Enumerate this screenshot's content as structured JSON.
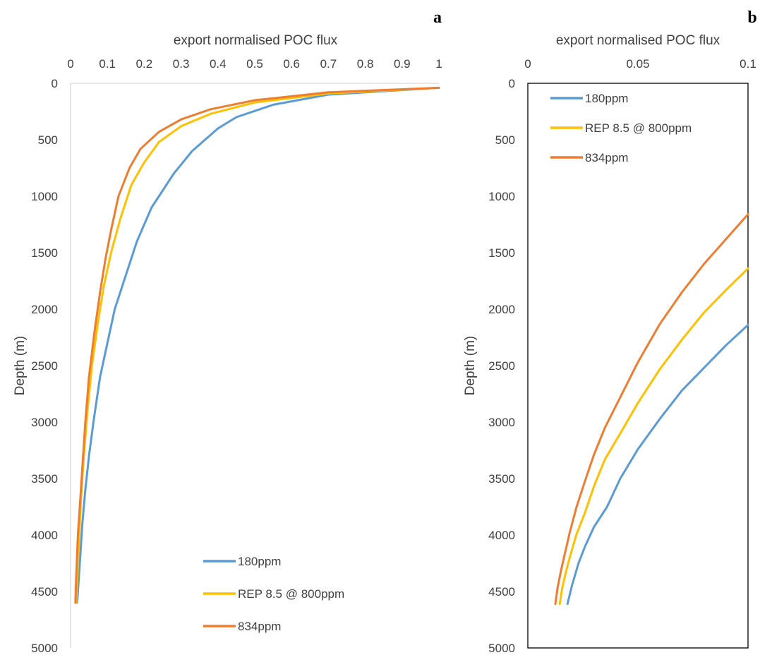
{
  "chart_data": [
    {
      "panel_label": "a",
      "type": "line",
      "title": "",
      "xlabel": "export normalised POC flux",
      "ylabel": "Depth (m)",
      "xlim": [
        0,
        1
      ],
      "ylim": [
        0,
        5000
      ],
      "y_inverted": true,
      "x_axis_position": "top",
      "x_ticks": [
        "0",
        "0.1",
        "0.2",
        "0.3",
        "0.4",
        "0.5",
        "0.6",
        "0.7",
        "0.8",
        "0.9",
        "1"
      ],
      "y_ticks": [
        "0",
        "500",
        "1000",
        "1500",
        "2000",
        "2500",
        "3000",
        "3500",
        "4000",
        "4500",
        "5000"
      ],
      "grid": false,
      "legend_position": "bottom-right",
      "series": [
        {
          "name": "180ppm",
          "color": "#5b9bd5",
          "x": [
            1.0,
            0.7,
            0.55,
            0.45,
            0.4,
            0.33,
            0.28,
            0.22,
            0.18,
            0.15,
            0.12,
            0.1,
            0.08,
            0.062,
            0.05,
            0.04,
            0.032,
            0.026,
            0.022,
            0.019,
            0.017
          ],
          "y": [
            40,
            100,
            190,
            300,
            400,
            600,
            800,
            1100,
            1400,
            1700,
            2000,
            2300,
            2600,
            3000,
            3300,
            3600,
            3900,
            4200,
            4400,
            4550,
            4600
          ]
        },
        {
          "name": "REP 8.5 @ 800ppm",
          "color": "#ffc000",
          "x": [
            1.0,
            0.7,
            0.5,
            0.38,
            0.3,
            0.24,
            0.2,
            0.165,
            0.135,
            0.11,
            0.09,
            0.075,
            0.058,
            0.046,
            0.036,
            0.028,
            0.022,
            0.018,
            0.016,
            0.015
          ],
          "y": [
            40,
            90,
            170,
            270,
            380,
            520,
            700,
            900,
            1200,
            1500,
            1800,
            2100,
            2500,
            2900,
            3300,
            3700,
            4100,
            4400,
            4550,
            4600
          ]
        },
        {
          "name": "834ppm",
          "color": "#ed7d31",
          "x": [
            1.0,
            0.7,
            0.5,
            0.38,
            0.3,
            0.24,
            0.19,
            0.16,
            0.13,
            0.11,
            0.095,
            0.08,
            0.065,
            0.05,
            0.04,
            0.032,
            0.026,
            0.02,
            0.016,
            0.014,
            0.013
          ],
          "y": [
            40,
            80,
            150,
            230,
            320,
            430,
            580,
            750,
            1000,
            1300,
            1550,
            1850,
            2200,
            2600,
            3000,
            3400,
            3700,
            4000,
            4300,
            4500,
            4600
          ]
        }
      ]
    },
    {
      "panel_label": "b",
      "type": "line",
      "title": "",
      "xlabel": "export normalised POC flux",
      "ylabel": "Depth (m)",
      "xlim": [
        0,
        0.1
      ],
      "ylim": [
        0,
        5000
      ],
      "y_inverted": true,
      "x_axis_position": "top",
      "x_ticks": [
        "0",
        "0.05",
        "0.1"
      ],
      "y_ticks": [
        "0",
        "500",
        "1000",
        "1500",
        "2000",
        "2500",
        "3000",
        "3500",
        "4000",
        "4500",
        "5000"
      ],
      "grid": false,
      "legend_position": "top-left",
      "series": [
        {
          "name": "180ppm",
          "color": "#5b9bd5",
          "x": [
            0.1,
            0.09,
            0.08,
            0.07,
            0.06,
            0.05,
            0.042,
            0.036,
            0.03,
            0.026,
            0.023,
            0.0215,
            0.02,
            0.019,
            0.018
          ],
          "y": [
            2140,
            2320,
            2520,
            2720,
            2970,
            3240,
            3500,
            3750,
            3930,
            4100,
            4250,
            4350,
            4450,
            4530,
            4610
          ]
        },
        {
          "name": "REP 8.5 @ 800ppm",
          "color": "#ffc000",
          "x": [
            0.1,
            0.09,
            0.08,
            0.07,
            0.06,
            0.05,
            0.042,
            0.035,
            0.03,
            0.026,
            0.022,
            0.019,
            0.017,
            0.0155,
            0.0145
          ],
          "y": [
            1640,
            1830,
            2030,
            2270,
            2530,
            2830,
            3100,
            3330,
            3570,
            3800,
            4000,
            4200,
            4350,
            4480,
            4610
          ]
        },
        {
          "name": "834ppm",
          "color": "#ed7d31",
          "x": [
            0.1,
            0.09,
            0.08,
            0.07,
            0.06,
            0.05,
            0.042,
            0.035,
            0.03,
            0.026,
            0.022,
            0.019,
            0.017,
            0.015,
            0.0135,
            0.0125
          ],
          "y": [
            1160,
            1380,
            1600,
            1850,
            2130,
            2470,
            2780,
            3050,
            3290,
            3520,
            3760,
            3980,
            4150,
            4320,
            4470,
            4610
          ]
        }
      ]
    }
  ]
}
